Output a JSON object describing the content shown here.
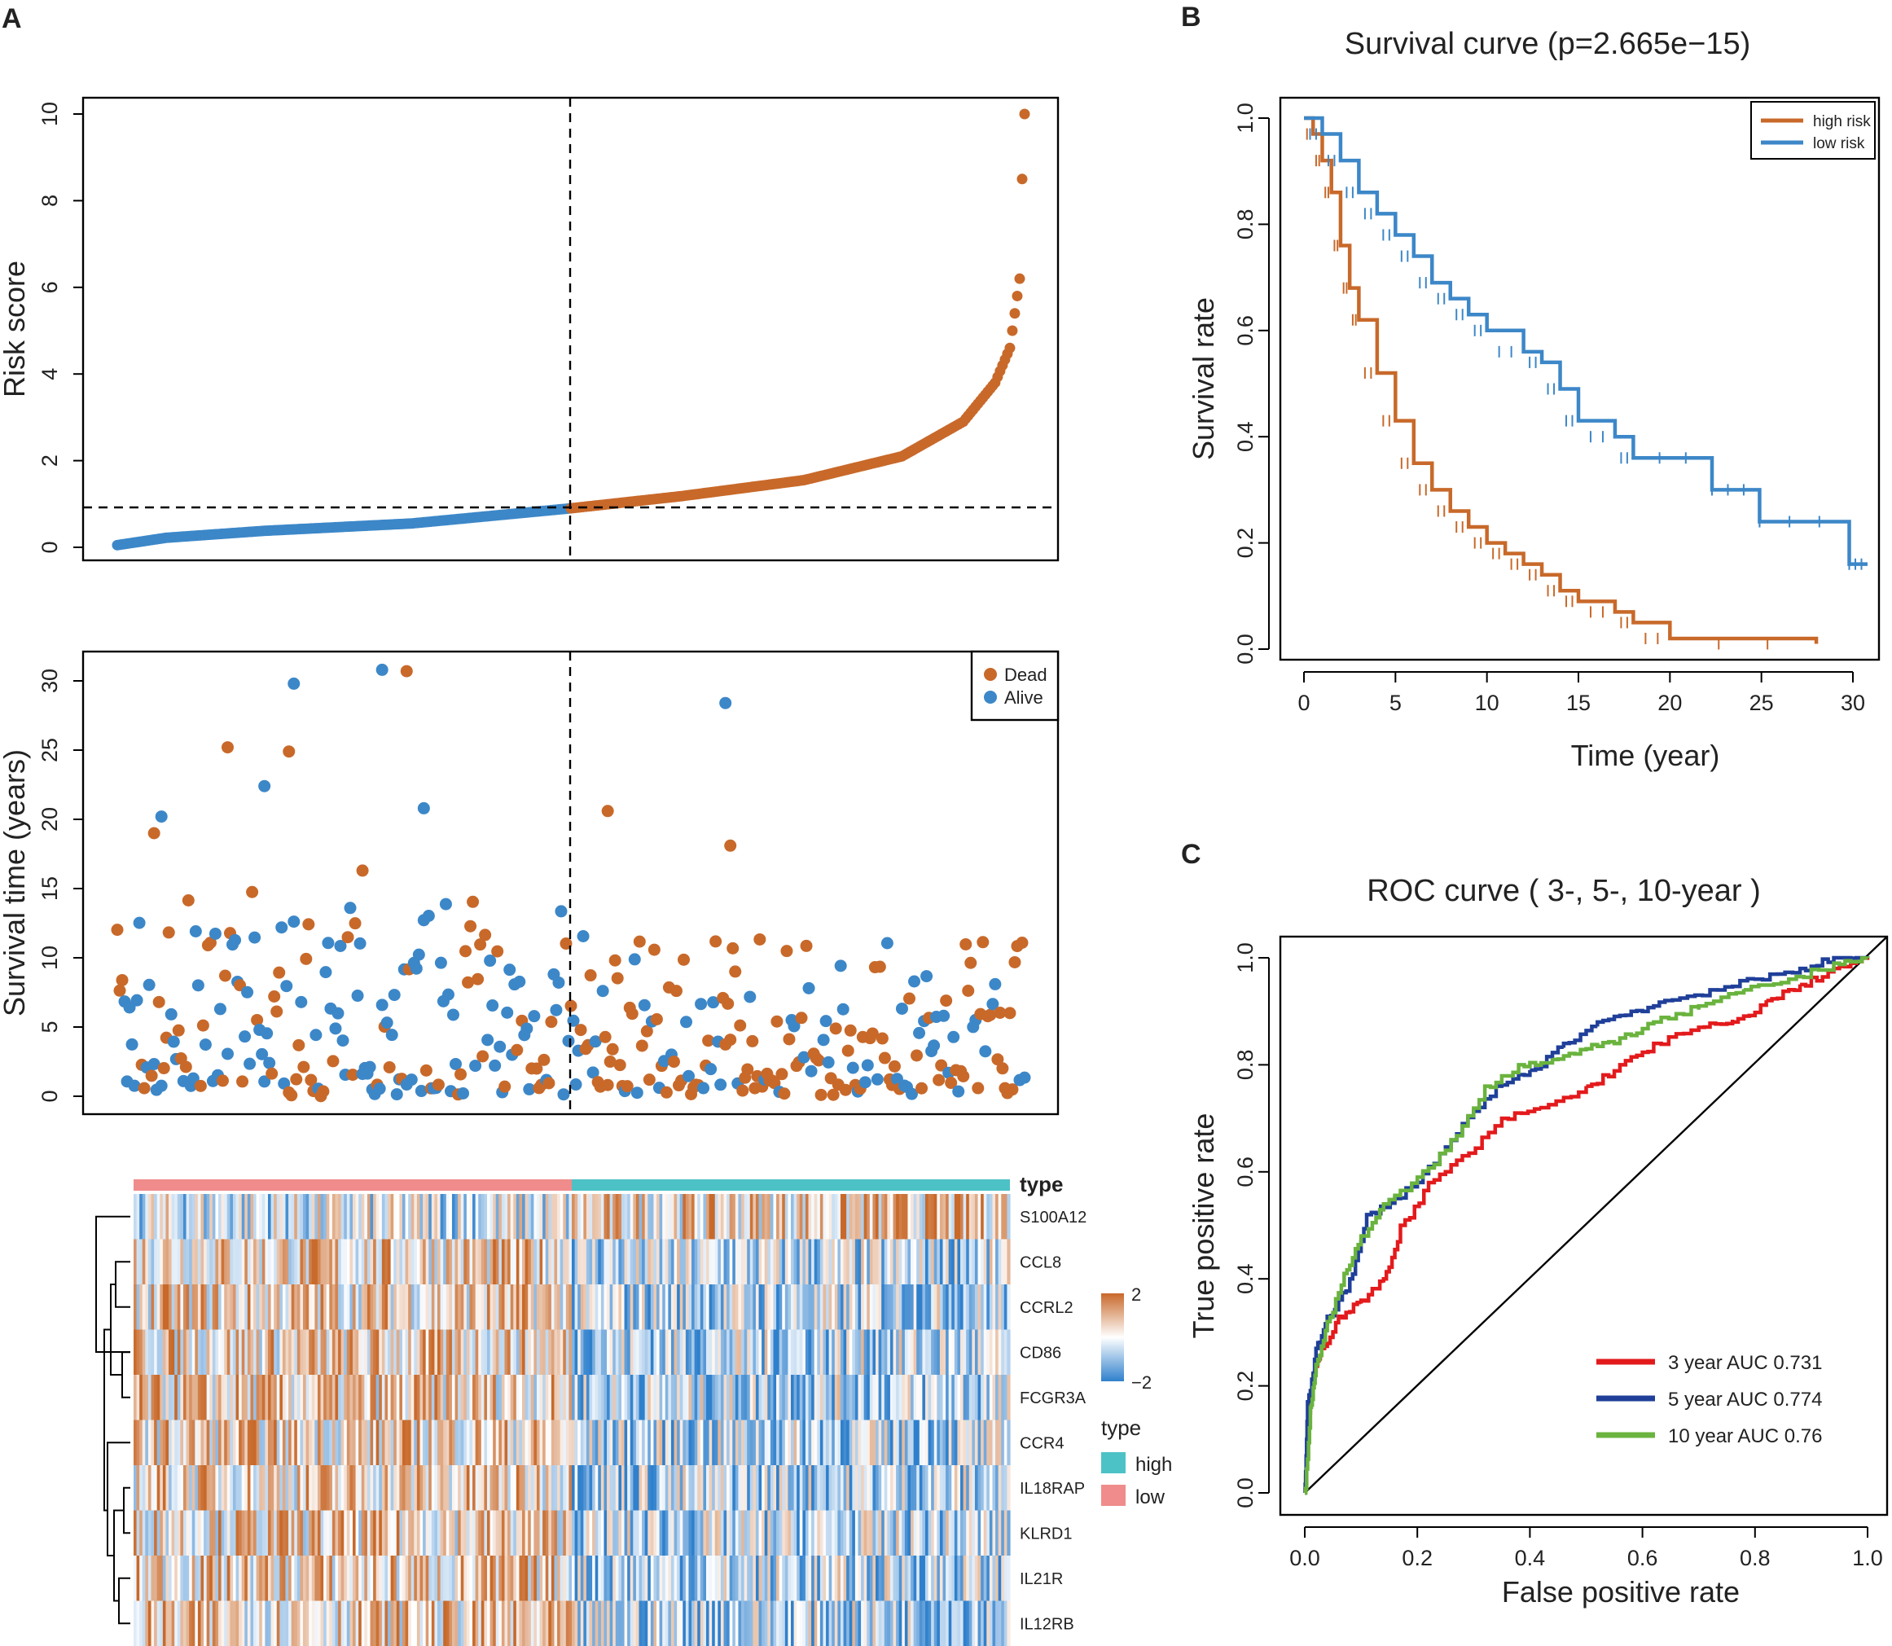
{
  "panels": {
    "a": "A",
    "b": "B",
    "c": "C"
  },
  "colors": {
    "high": "#C8692A",
    "low": "#3C87C8",
    "dead": "#C8692A",
    "alive": "#3C87C8",
    "heat_high": "#C8692A",
    "heat_mid": "#FFFFFF",
    "heat_low": "#2F80CC",
    "type_high": "#4DC2C6",
    "type_low": "#F08C8C",
    "roc3": "#E31A1C",
    "roc5": "#1F3F99",
    "roc10": "#6AB33E"
  },
  "chart_data": [
    {
      "id": "risk-score",
      "type": "scatter",
      "title": "",
      "ylabel": "Risk score",
      "xlabel": "",
      "ylim": [
        0,
        10
      ],
      "yticks": [
        "0",
        "2",
        "4",
        "6",
        "8",
        "10"
      ],
      "n_patients": 370,
      "cutoff_index": 185,
      "cutoff_value": 0.9,
      "curve_points": [
        [
          0,
          0.05
        ],
        [
          20,
          0.22
        ],
        [
          60,
          0.38
        ],
        [
          120,
          0.55
        ],
        [
          185,
          0.9
        ],
        [
          230,
          1.18
        ],
        [
          280,
          1.55
        ],
        [
          320,
          2.1
        ],
        [
          345,
          2.9
        ],
        [
          358,
          3.8
        ],
        [
          364,
          4.6
        ],
        [
          368,
          6.2
        ],
        [
          369,
          8.5
        ],
        [
          370,
          10.0
        ]
      ],
      "groups": [
        "low risk",
        "high risk"
      ]
    },
    {
      "id": "survival-time",
      "type": "scatter",
      "ylabel": "Survival time (years)",
      "ylim": [
        0,
        30
      ],
      "yticks": [
        "0",
        "5",
        "10",
        "15",
        "20",
        "25",
        "30"
      ],
      "legend": [
        "Dead",
        "Alive"
      ],
      "highlight_points": [
        [
          15,
          19.0
        ],
        [
          18,
          20.2
        ],
        [
          45,
          25.2
        ],
        [
          60,
          22.4
        ],
        [
          70,
          24.9
        ],
        [
          72,
          29.8
        ],
        [
          100,
          16.3
        ],
        [
          108,
          30.8
        ],
        [
          118,
          30.7
        ],
        [
          125,
          20.8
        ],
        [
          200,
          20.6
        ],
        [
          248,
          28.4
        ],
        [
          250,
          18.1
        ]
      ]
    },
    {
      "id": "heatmap",
      "type": "heatmap",
      "genes": [
        "S100A12",
        "CCL8",
        "CCRL2",
        "CD86",
        "FCGR3A",
        "CCR4",
        "IL18RAP",
        "KLRD1",
        "IL21R",
        "IL12RB"
      ],
      "type_label": "type",
      "scale_ticks": [
        "2",
        "−2"
      ],
      "legend_title": "type",
      "legend_items": [
        "high",
        "low"
      ]
    },
    {
      "id": "km-survival",
      "type": "line",
      "title": "Survival curve (p=2.665e−15)",
      "xlabel": "Time (year)",
      "ylabel": "Survival rate",
      "xlim": [
        0,
        31
      ],
      "ylim": [
        0,
        1
      ],
      "xticks": [
        "0",
        "5",
        "10",
        "15",
        "20",
        "25",
        "30"
      ],
      "yticks": [
        "0.0",
        "0.2",
        "0.4",
        "0.6",
        "0.8",
        "1.0"
      ],
      "series": [
        {
          "name": "high risk",
          "points": [
            [
              0,
              1.0
            ],
            [
              0.5,
              0.97
            ],
            [
              1,
              0.92
            ],
            [
              1.5,
              0.86
            ],
            [
              2,
              0.76
            ],
            [
              2.5,
              0.68
            ],
            [
              3,
              0.62
            ],
            [
              4,
              0.52
            ],
            [
              5,
              0.43
            ],
            [
              6,
              0.35
            ],
            [
              7,
              0.3
            ],
            [
              8,
              0.26
            ],
            [
              9,
              0.23
            ],
            [
              10,
              0.2
            ],
            [
              11,
              0.18
            ],
            [
              12,
              0.16
            ],
            [
              13,
              0.14
            ],
            [
              14,
              0.11
            ],
            [
              15,
              0.09
            ],
            [
              17,
              0.07
            ],
            [
              18,
              0.05
            ],
            [
              20,
              0.02
            ],
            [
              28,
              0.01
            ]
          ]
        },
        {
          "name": "low risk",
          "points": [
            [
              0,
              1.0
            ],
            [
              1,
              0.97
            ],
            [
              2,
              0.92
            ],
            [
              3,
              0.86
            ],
            [
              4,
              0.82
            ],
            [
              5,
              0.78
            ],
            [
              6,
              0.74
            ],
            [
              7,
              0.69
            ],
            [
              8,
              0.66
            ],
            [
              9,
              0.63
            ],
            [
              10,
              0.6
            ],
            [
              12,
              0.56
            ],
            [
              13,
              0.54
            ],
            [
              14,
              0.49
            ],
            [
              15,
              0.43
            ],
            [
              17,
              0.4
            ],
            [
              18,
              0.36
            ],
            [
              22.3,
              0.36
            ],
            [
              22.3,
              0.3
            ],
            [
              24.9,
              0.3
            ],
            [
              24.9,
              0.24
            ],
            [
              29.8,
              0.24
            ],
            [
              29.8,
              0.16
            ],
            [
              30.8,
              0.16
            ]
          ]
        }
      ]
    },
    {
      "id": "roc",
      "type": "line",
      "title": "ROC curve ( 3-, 5-, 10-year )",
      "xlabel": "False positive rate",
      "ylabel": "True positive rate",
      "xlim": [
        0,
        1
      ],
      "ylim": [
        0,
        1
      ],
      "xticks": [
        "0.0",
        "0.2",
        "0.4",
        "0.6",
        "0.8",
        "1.0"
      ],
      "yticks": [
        "0.0",
        "0.2",
        "0.4",
        "0.6",
        "0.8",
        "1.0"
      ],
      "series": [
        {
          "name": "3 year AUC 0.731",
          "points": [
            [
              0,
              0.0
            ],
            [
              0.005,
              0.13
            ],
            [
              0.015,
              0.22
            ],
            [
              0.03,
              0.27
            ],
            [
              0.06,
              0.33
            ],
            [
              0.1,
              0.36
            ],
            [
              0.14,
              0.4
            ],
            [
              0.17,
              0.5
            ],
            [
              0.22,
              0.58
            ],
            [
              0.28,
              0.63
            ],
            [
              0.35,
              0.7
            ],
            [
              0.42,
              0.72
            ],
            [
              0.5,
              0.76
            ],
            [
              0.56,
              0.8
            ],
            [
              0.62,
              0.84
            ],
            [
              0.7,
              0.87
            ],
            [
              0.76,
              0.88
            ],
            [
              0.82,
              0.92
            ],
            [
              0.88,
              0.95
            ],
            [
              0.94,
              0.98
            ],
            [
              1.0,
              1.0
            ]
          ]
        },
        {
          "name": "5 year AUC 0.774",
          "points": [
            [
              0,
              0.0
            ],
            [
              0.005,
              0.17
            ],
            [
              0.02,
              0.27
            ],
            [
              0.04,
              0.33
            ],
            [
              0.08,
              0.4
            ],
            [
              0.11,
              0.52
            ],
            [
              0.16,
              0.55
            ],
            [
              0.22,
              0.61
            ],
            [
              0.28,
              0.69
            ],
            [
              0.34,
              0.76
            ],
            [
              0.4,
              0.79
            ],
            [
              0.46,
              0.84
            ],
            [
              0.52,
              0.88
            ],
            [
              0.58,
              0.9
            ],
            [
              0.64,
              0.92
            ],
            [
              0.72,
              0.94
            ],
            [
              0.8,
              0.96
            ],
            [
              0.88,
              0.98
            ],
            [
              0.94,
              1.0
            ],
            [
              1.0,
              1.0
            ]
          ]
        },
        {
          "name": "10 year AUC 0.76",
          "points": [
            [
              0,
              0.0
            ],
            [
              0.01,
              0.16
            ],
            [
              0.02,
              0.24
            ],
            [
              0.04,
              0.32
            ],
            [
              0.07,
              0.41
            ],
            [
              0.1,
              0.48
            ],
            [
              0.14,
              0.54
            ],
            [
              0.2,
              0.59
            ],
            [
              0.26,
              0.66
            ],
            [
              0.32,
              0.76
            ],
            [
              0.38,
              0.8
            ],
            [
              0.44,
              0.81
            ],
            [
              0.5,
              0.83
            ],
            [
              0.56,
              0.85
            ],
            [
              0.62,
              0.88
            ],
            [
              0.7,
              0.91
            ],
            [
              0.78,
              0.94
            ],
            [
              0.86,
              0.96
            ],
            [
              0.94,
              0.99
            ],
            [
              1.0,
              1.0
            ]
          ]
        }
      ]
    }
  ]
}
